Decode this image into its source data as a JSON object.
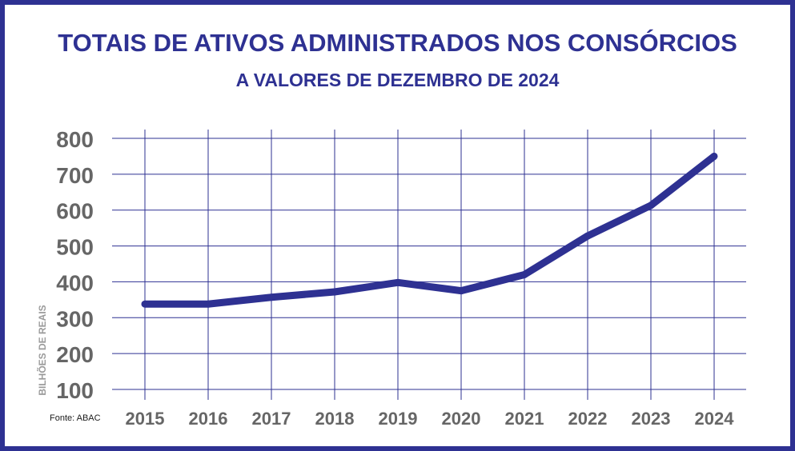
{
  "title": "TOTAIS DE ATIVOS ADMINISTRADOS NOS CONSÓRCIOS",
  "subtitle": "A VALORES DE DEZEMBRO DE 2024",
  "source": "Fonte: ABAC",
  "colors": {
    "brand": "#2e3192",
    "line": "#2e3192",
    "grid": "#2e3192",
    "tick_labels": "#666666",
    "axis_label": "#9a9a9a"
  },
  "chart_data": {
    "type": "line",
    "title": "TOTAIS DE ATIVOS ADMINISTRADOS NOS CONSÓRCIOS",
    "subtitle": "A VALORES DE DEZEMBRO DE 2024",
    "xlabel": "",
    "ylabel": "BILHÕES DE REAIS",
    "categories": [
      "2015",
      "2016",
      "2017",
      "2018",
      "2019",
      "2020",
      "2021",
      "2022",
      "2023",
      "2024"
    ],
    "values": [
      338,
      338,
      357,
      372,
      398,
      375,
      420,
      528,
      613,
      750
    ],
    "yticks": [
      100,
      200,
      300,
      400,
      500,
      600,
      700,
      800
    ],
    "ylim": [
      100,
      800
    ],
    "grid": true,
    "legend": "none"
  }
}
